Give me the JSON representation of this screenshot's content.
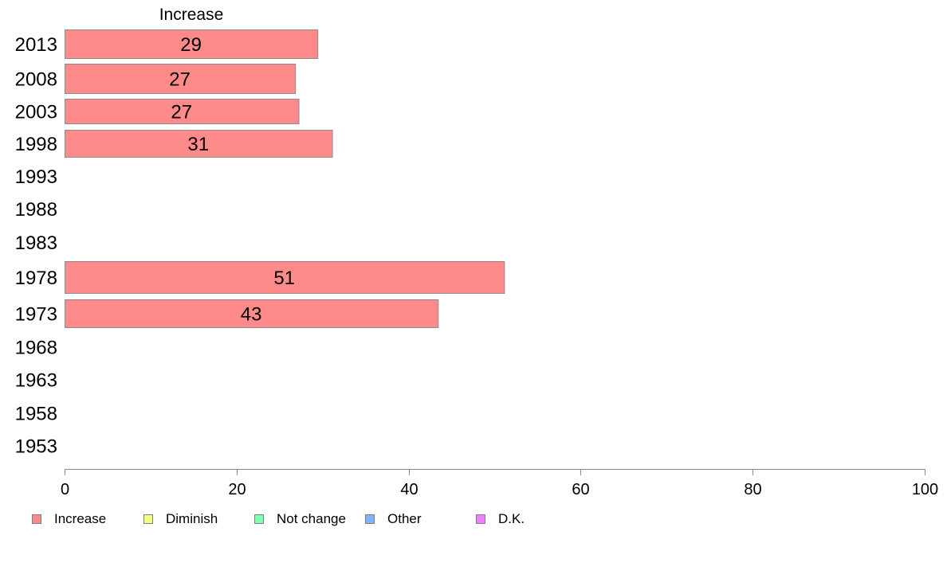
{
  "chart_data": {
    "type": "bar",
    "orientation": "horizontal",
    "panel_title": "Increase",
    "categories": [
      "2013",
      "2008",
      "2003",
      "1998",
      "1993",
      "1988",
      "1983",
      "1978",
      "1973",
      "1968",
      "1963",
      "1958",
      "1953"
    ],
    "series": [
      {
        "name": "Increase",
        "color": "#ff8a8a",
        "values": [
          29.4,
          26.8,
          27.2,
          31.1,
          null,
          null,
          null,
          51.1,
          43.4,
          null,
          null,
          null,
          null
        ],
        "labels": [
          "29",
          "27",
          "27",
          "31",
          "",
          "",
          "",
          "51",
          "43",
          "",
          "",
          "",
          ""
        ]
      }
    ],
    "xlim": [
      0,
      100
    ],
    "xticks": [
      0,
      20,
      40,
      60,
      80,
      100
    ],
    "grid": false,
    "legend": {
      "placement": "bottom-left",
      "items": [
        {
          "label": "Increase",
          "color": "#ff8a8a"
        },
        {
          "label": "Diminish",
          "color": "#f2ff7f"
        },
        {
          "label": "Not change",
          "color": "#80ffb3"
        },
        {
          "label": "Other",
          "color": "#80b3ff"
        },
        {
          "label": "D.K.",
          "color": "#f080ff"
        }
      ]
    }
  }
}
